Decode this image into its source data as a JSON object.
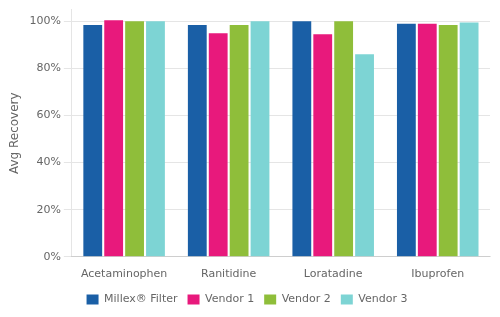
{
  "chart_data": {
    "type": "bar",
    "categories": [
      "Acetaminophen",
      "Ranitidine",
      "Loratadine",
      "Ibuprofen"
    ],
    "series": [
      {
        "name": "Millex® Filter",
        "color": "#1a5fa6",
        "values": [
          98.5,
          98.5,
          100.0,
          99.0
        ]
      },
      {
        "name": "Vendor 1",
        "color": "#e8197c",
        "values": [
          100.5,
          95.0,
          94.5,
          99.0
        ]
      },
      {
        "name": "Vendor 2",
        "color": "#8fbe3a",
        "values": [
          100.0,
          98.5,
          100.0,
          98.5
        ]
      },
      {
        "name": "Vendor 3",
        "color": "#7dd4d4",
        "values": [
          100.0,
          100.0,
          86.0,
          99.5
        ]
      }
    ],
    "ylabel": "Avg Recovery",
    "ylim": [
      0,
      105
    ],
    "yticks": [
      {
        "value": 0,
        "label": "0%"
      },
      {
        "value": 20,
        "label": "20%"
      },
      {
        "value": 40,
        "label": "40%"
      },
      {
        "value": 60,
        "label": "60%"
      },
      {
        "value": 80,
        "label": "80%"
      },
      {
        "value": 100,
        "label": "100%"
      }
    ],
    "grid": true,
    "legend": "bottom"
  }
}
